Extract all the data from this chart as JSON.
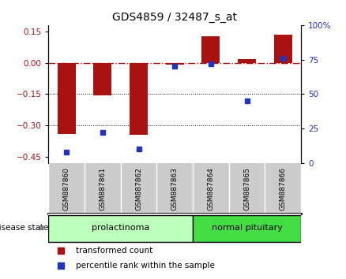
{
  "title": "GDS4859 / 32487_s_at",
  "samples": [
    "GSM887860",
    "GSM887861",
    "GSM887862",
    "GSM887863",
    "GSM887864",
    "GSM887865",
    "GSM887866"
  ],
  "bar_values": [
    -0.34,
    -0.155,
    -0.345,
    -0.01,
    0.125,
    0.018,
    0.135
  ],
  "percentile_values": [
    8,
    22,
    10,
    70,
    72,
    45,
    76
  ],
  "bar_color": "#AA1111",
  "dot_color": "#2233BB",
  "ylim_left": [
    -0.48,
    0.18
  ],
  "ylim_right": [
    0,
    100
  ],
  "yticks_left": [
    0.15,
    0,
    -0.15,
    -0.3,
    -0.45
  ],
  "yticks_right": [
    100,
    75,
    50,
    25,
    0
  ],
  "hline_y": 0,
  "dotted_hlines": [
    -0.15,
    -0.3
  ],
  "disease_groups": [
    {
      "label": "prolactinoma",
      "indices": [
        0,
        3
      ],
      "color": "#bbffbb"
    },
    {
      "label": "normal pituitary",
      "indices": [
        4,
        6
      ],
      "color": "#44dd44"
    }
  ],
  "disease_state_label": "disease state",
  "legend_bar_label": "transformed count",
  "legend_dot_label": "percentile rank within the sample",
  "bg_color": "#ffffff",
  "plot_bg": "#ffffff",
  "sample_box_color": "#cccccc",
  "title_fontsize": 10,
  "tick_fontsize": 7.5,
  "label_fontsize": 7.5
}
